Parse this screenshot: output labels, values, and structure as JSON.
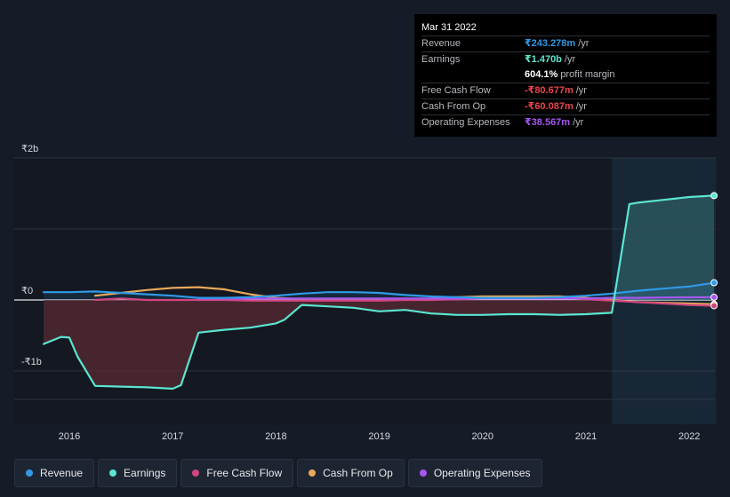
{
  "tooltip": {
    "date": "Mar 31 2022",
    "rows": [
      {
        "label": "Revenue",
        "value": "₹243.278m",
        "unit": "/yr",
        "color": "#2f9ae6"
      },
      {
        "label": "Earnings",
        "value": "₹1.470b",
        "unit": "/yr",
        "color": "#5ae5cf"
      },
      {
        "label": "",
        "value": "604.1%",
        "unit": "profit margin",
        "color": "#ffffff"
      },
      {
        "label": "Free Cash Flow",
        "value": "-₹80.677m",
        "unit": "/yr",
        "color": "#e8474e"
      },
      {
        "label": "Cash From Op",
        "value": "-₹60.087m",
        "unit": "/yr",
        "color": "#e8474e"
      },
      {
        "label": "Operating Expenses",
        "value": "₹38.567m",
        "unit": "/yr",
        "color": "#a657f1"
      }
    ]
  },
  "legend": [
    {
      "label": "Revenue",
      "color": "#2f9ae6"
    },
    {
      "label": "Earnings",
      "color": "#5ae5cf"
    },
    {
      "label": "Free Cash Flow",
      "color": "#d0457f"
    },
    {
      "label": "Cash From Op",
      "color": "#e8a95b"
    },
    {
      "label": "Operating Expenses",
      "color": "#a657f1"
    }
  ],
  "chart_data": {
    "type": "line",
    "y_tick_labels": [
      {
        "value": 2,
        "label": "₹2b"
      },
      {
        "value": 0,
        "label": "₹0"
      },
      {
        "value": -1,
        "label": "-₹1b"
      }
    ],
    "x_tick_labels": [
      {
        "value": 2016,
        "label": "2016"
      },
      {
        "value": 2017,
        "label": "2017"
      },
      {
        "value": 2018,
        "label": "2018"
      },
      {
        "value": 2019,
        "label": "2019"
      },
      {
        "value": 2020,
        "label": "2020"
      },
      {
        "value": 2021,
        "label": "2021"
      },
      {
        "value": 2022,
        "label": "2022"
      }
    ],
    "xlim": [
      2015.72,
      2022.24
    ],
    "ylim": [
      -1.4,
      2.0
    ],
    "highlight_start": 2021.25,
    "series": [
      {
        "name": "Revenue",
        "color": "#2f9ae6",
        "points": [
          [
            2015.75,
            0.11
          ],
          [
            2016.0,
            0.11
          ],
          [
            2016.25,
            0.12
          ],
          [
            2016.5,
            0.1
          ],
          [
            2016.75,
            0.08
          ],
          [
            2017.0,
            0.06
          ],
          [
            2017.25,
            0.03
          ],
          [
            2017.5,
            0.03
          ],
          [
            2017.75,
            0.04
          ],
          [
            2018.0,
            0.06
          ],
          [
            2018.25,
            0.09
          ],
          [
            2018.5,
            0.11
          ],
          [
            2018.75,
            0.11
          ],
          [
            2019.0,
            0.1
          ],
          [
            2019.25,
            0.07
          ],
          [
            2019.5,
            0.05
          ],
          [
            2019.75,
            0.04
          ],
          [
            2020.0,
            0.03
          ],
          [
            2020.25,
            0.03
          ],
          [
            2020.5,
            0.03
          ],
          [
            2020.75,
            0.04
          ],
          [
            2021.0,
            0.06
          ],
          [
            2021.25,
            0.09
          ],
          [
            2021.5,
            0.13
          ],
          [
            2021.75,
            0.16
          ],
          [
            2022.0,
            0.19
          ],
          [
            2022.24,
            0.243
          ]
        ]
      },
      {
        "name": "Earnings",
        "color": "#5ae5cf",
        "points": [
          [
            2015.75,
            -0.62
          ],
          [
            2015.92,
            -0.52
          ],
          [
            2016.0,
            -0.53
          ],
          [
            2016.08,
            -0.8
          ],
          [
            2016.25,
            -1.21
          ],
          [
            2016.5,
            -1.22
          ],
          [
            2016.75,
            -1.23
          ],
          [
            2017.0,
            -1.25
          ],
          [
            2017.08,
            -1.2
          ],
          [
            2017.25,
            -0.46
          ],
          [
            2017.5,
            -0.42
          ],
          [
            2017.75,
            -0.39
          ],
          [
            2018.0,
            -0.33
          ],
          [
            2018.08,
            -0.28
          ],
          [
            2018.25,
            -0.07
          ],
          [
            2018.5,
            -0.09
          ],
          [
            2018.75,
            -0.11
          ],
          [
            2019.0,
            -0.16
          ],
          [
            2019.25,
            -0.14
          ],
          [
            2019.5,
            -0.19
          ],
          [
            2019.75,
            -0.21
          ],
          [
            2020.0,
            -0.21
          ],
          [
            2020.25,
            -0.2
          ],
          [
            2020.5,
            -0.2
          ],
          [
            2020.75,
            -0.21
          ],
          [
            2021.0,
            -0.2
          ],
          [
            2021.25,
            -0.18
          ],
          [
            2021.42,
            1.35
          ],
          [
            2021.5,
            1.37
          ],
          [
            2021.75,
            1.41
          ],
          [
            2022.0,
            1.45
          ],
          [
            2022.24,
            1.47
          ]
        ]
      },
      {
        "name": "Free Cash Flow",
        "color": "#d0457f",
        "points": [
          [
            2016.25,
            0.0
          ],
          [
            2016.5,
            0.02
          ],
          [
            2016.75,
            0.0
          ],
          [
            2017.0,
            0.0
          ],
          [
            2017.25,
            0.0
          ],
          [
            2017.5,
            0.0
          ],
          [
            2017.75,
            -0.01
          ],
          [
            2018.0,
            -0.01
          ],
          [
            2018.25,
            -0.01
          ],
          [
            2018.5,
            -0.01
          ],
          [
            2018.75,
            -0.01
          ],
          [
            2019.0,
            -0.01
          ],
          [
            2019.25,
            0.0
          ],
          [
            2019.5,
            0.0
          ],
          [
            2019.75,
            0.01
          ],
          [
            2020.0,
            0.02
          ],
          [
            2020.25,
            0.03
          ],
          [
            2020.5,
            0.03
          ],
          [
            2020.75,
            0.03
          ],
          [
            2021.0,
            0.01
          ],
          [
            2021.25,
            -0.01
          ],
          [
            2021.5,
            -0.03
          ],
          [
            2021.75,
            -0.05
          ],
          [
            2022.0,
            -0.07
          ],
          [
            2022.24,
            -0.081
          ]
        ]
      },
      {
        "name": "Cash From Op",
        "color": "#e8a95b",
        "points": [
          [
            2016.25,
            0.06
          ],
          [
            2016.5,
            0.1
          ],
          [
            2016.75,
            0.14
          ],
          [
            2017.0,
            0.17
          ],
          [
            2017.25,
            0.18
          ],
          [
            2017.5,
            0.15
          ],
          [
            2017.75,
            0.08
          ],
          [
            2018.0,
            0.03
          ],
          [
            2018.25,
            0.01
          ],
          [
            2018.5,
            0.01
          ],
          [
            2018.75,
            0.0
          ],
          [
            2019.0,
            0.0
          ],
          [
            2019.25,
            0.01
          ],
          [
            2019.5,
            0.02
          ],
          [
            2019.75,
            0.04
          ],
          [
            2020.0,
            0.05
          ],
          [
            2020.25,
            0.05
          ],
          [
            2020.5,
            0.05
          ],
          [
            2020.75,
            0.05
          ],
          [
            2021.0,
            0.03
          ],
          [
            2021.25,
            0.0
          ],
          [
            2021.5,
            -0.03
          ],
          [
            2021.75,
            -0.04
          ],
          [
            2022.0,
            -0.05
          ],
          [
            2022.24,
            -0.06
          ]
        ]
      },
      {
        "name": "Operating Expenses",
        "color": "#a657f1",
        "points": [
          [
            2017.25,
            0.02
          ],
          [
            2017.5,
            0.02
          ],
          [
            2017.75,
            0.02
          ],
          [
            2018.0,
            0.02
          ],
          [
            2018.25,
            0.02
          ],
          [
            2018.5,
            0.02
          ],
          [
            2018.75,
            0.02
          ],
          [
            2019.0,
            0.02
          ],
          [
            2019.25,
            0.02
          ],
          [
            2019.5,
            0.02
          ],
          [
            2019.75,
            0.02
          ],
          [
            2020.0,
            0.02
          ],
          [
            2020.25,
            0.02
          ],
          [
            2020.5,
            0.02
          ],
          [
            2020.75,
            0.02
          ],
          [
            2021.0,
            0.02
          ],
          [
            2021.25,
            0.03
          ],
          [
            2021.5,
            0.03
          ],
          [
            2021.75,
            0.035
          ],
          [
            2022.0,
            0.037
          ],
          [
            2022.24,
            0.0386
          ]
        ]
      }
    ]
  }
}
